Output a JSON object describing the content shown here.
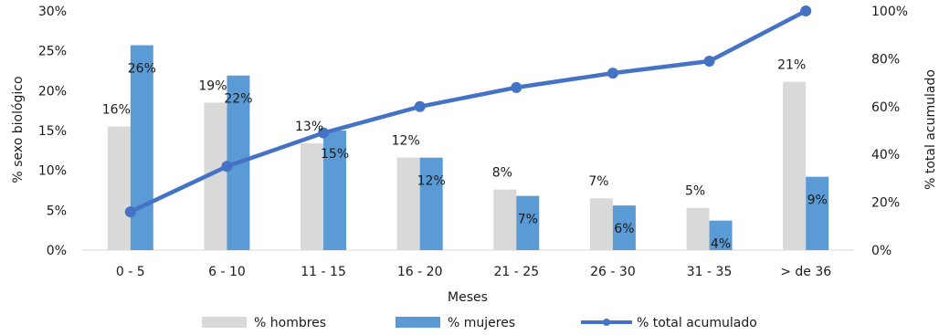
{
  "chart_data": {
    "type": "bar",
    "xlabel": "Meses",
    "ylabel_left": "% sexo biológico",
    "ylabel_right": "% total acumulado",
    "categories": [
      "0 - 5",
      "6 - 10",
      "11 - 15",
      "16 - 20",
      "21 - 25",
      "26 - 30",
      "31 - 35",
      "> de 36"
    ],
    "ylim_left": [
      0,
      30
    ],
    "ylim_right": [
      0,
      100
    ],
    "left_ticks": [
      "0%",
      "5%",
      "10%",
      "15%",
      "20%",
      "25%",
      "30%"
    ],
    "right_ticks": [
      "0%",
      "20%",
      "40%",
      "60%",
      "80%",
      "100%"
    ],
    "grid": false,
    "legend_position": "bottom",
    "series": [
      {
        "name": "% hombres",
        "type": "bar",
        "axis": "left",
        "color": "#d9d9d9",
        "values": [
          15.5,
          18.5,
          13.4,
          11.6,
          7.6,
          6.5,
          5.3,
          21.1
        ],
        "labels": [
          "16%",
          "19%",
          "13%",
          "12%",
          "8%",
          "7%",
          "5%",
          "21%"
        ]
      },
      {
        "name": "% mujeres",
        "type": "bar",
        "axis": "left",
        "color": "#5b9bd5",
        "values": [
          25.7,
          21.9,
          15.0,
          11.6,
          6.8,
          5.6,
          3.7,
          9.2
        ],
        "labels": [
          "26%",
          "22%",
          "15%",
          "12%",
          "7%",
          "6%",
          "4%",
          "9%"
        ]
      },
      {
        "name": "% total acumulado",
        "type": "line",
        "axis": "right",
        "color": "#4472c4",
        "values": [
          16,
          35,
          49,
          60,
          68,
          74,
          79,
          100
        ]
      }
    ]
  }
}
